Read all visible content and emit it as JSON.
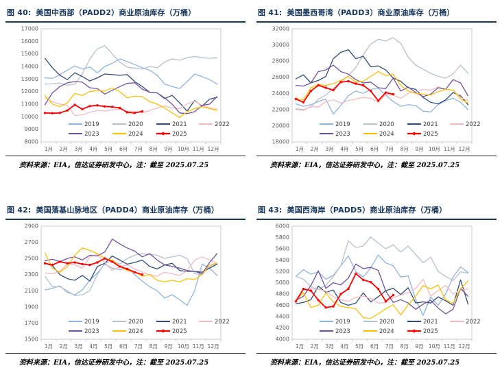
{
  "page": {
    "background": "#ffffff",
    "title_color": "#17375E",
    "axis_text_color": "#595959",
    "legend_text_color": "#404040",
    "plot_border_color": "#C9C9C9"
  },
  "source_note": "资料来源：EIA，信达证券研发中心，注：截至 2025.07.25",
  "months": [
    "1月",
    "2月",
    "3月",
    "4月",
    "5月",
    "6月",
    "7月",
    "8月",
    "9月",
    "10月",
    "11月",
    "12月"
  ],
  "palette": {
    "2019": "#8EB4E3",
    "2020": "#B6C1CE",
    "2021": "#2E4C78",
    "2022": "#F5B9BE",
    "2023": "#7450A0",
    "2024": "#FFC000",
    "2025": "#FF0000"
  },
  "legend_rows": [
    [
      "2019",
      "2020",
      "2021",
      "2022"
    ],
    [
      "2023",
      "2024",
      "2025"
    ]
  ],
  "chart_data": [
    {
      "id": "padd2",
      "type": "line",
      "fig_label": "图 40:",
      "title": "美国中西部（PADD2）商业原油库存（万桶）",
      "source": "资料来源：EIA，信达证券研发中心，注：截至 2025.07.25",
      "ylim": [
        8000,
        17000
      ],
      "ytick_step": 1000,
      "xlabel": "",
      "ylabel": "",
      "series": [
        {
          "name": "2019",
          "values": [
            13100,
            13050,
            13350,
            13700,
            14050,
            13800,
            13950,
            13500,
            14000,
            14250,
            14600,
            14400,
            14150,
            13900,
            13700,
            13300,
            12600,
            12400,
            12250,
            12800,
            13400,
            13200,
            12950,
            12600
          ]
        },
        {
          "name": "2020",
          "values": [
            12600,
            12620,
            12680,
            12520,
            12600,
            13400,
            14600,
            15400,
            15650,
            15000,
            14350,
            13950,
            13850,
            13800,
            14000,
            13900,
            14350,
            14600,
            14500,
            14700,
            14800,
            14700,
            14650,
            14700
          ]
        },
        {
          "name": "2021",
          "values": [
            14650,
            13900,
            13300,
            12950,
            13500,
            13200,
            12850,
            13100,
            13400,
            13350,
            13300,
            13350,
            12800,
            12400,
            11950,
            11900,
            11450,
            11700,
            11100,
            10450,
            11300,
            10850,
            11400,
            11550
          ]
        },
        {
          "name": "2022",
          "values": [
            11500,
            11200,
            11000,
            10900,
            10100,
            10150,
            10350,
            10500,
            10450,
            10550,
            10600,
            10450,
            10400,
            10300,
            10500,
            10700,
            10850,
            10700,
            10650,
            11000,
            11250,
            10900,
            10700,
            10600
          ]
        },
        {
          "name": "2023",
          "values": [
            10950,
            11900,
            12400,
            12700,
            12800,
            12750,
            12300,
            12250,
            11800,
            12100,
            12400,
            12650,
            12700,
            12200,
            11950,
            11900,
            11500,
            11000,
            10300,
            10250,
            10400,
            10900,
            11000,
            11600
          ]
        },
        {
          "name": "2024",
          "values": [
            11700,
            11000,
            10800,
            11100,
            11850,
            11700,
            12000,
            12100,
            12050,
            12300,
            12000,
            11500,
            11650,
            11600,
            11200,
            11000,
            10700,
            10300,
            9950,
            10400,
            10650,
            10800,
            10650,
            10500
          ]
        },
        {
          "name": "2025",
          "values": [
            10300,
            10280,
            10300,
            10500,
            10950,
            10600,
            10850,
            10900,
            10820,
            10780,
            10700,
            10350,
            10300,
            10430
          ]
        }
      ]
    },
    {
      "id": "padd3",
      "type": "line",
      "fig_label": "图 41:",
      "title": "美国墨西哥湾（PADD3）商业原油库存（万桶）",
      "source": "资料来源：EIA，信达证券研发中心，注：截至 2025.07.25",
      "ylim": [
        18000,
        32000
      ],
      "ytick_step": 2000,
      "xlabel": "",
      "ylabel": "",
      "series": [
        {
          "name": "2019",
          "values": [
            22700,
            22400,
            22600,
            23000,
            23300,
            21450,
            22500,
            23700,
            24300,
            24000,
            24500,
            24650,
            23800,
            23000,
            22400,
            22600,
            22500,
            21800,
            21700,
            22600,
            23100,
            23400,
            22900,
            22000
          ]
        },
        {
          "name": "2020",
          "values": [
            22100,
            22000,
            22300,
            23300,
            23800,
            24600,
            25400,
            26200,
            27200,
            28800,
            30100,
            30700,
            30500,
            30900,
            30200,
            28500,
            27500,
            27000,
            26500,
            26100,
            25900,
            26400,
            27500,
            26500
          ]
        },
        {
          "name": "2021",
          "values": [
            25800,
            26300,
            25300,
            25600,
            26100,
            28300,
            29100,
            29400,
            28300,
            28600,
            27300,
            27400,
            26900,
            25900,
            25500,
            24700,
            24500,
            23500,
            22900,
            22700,
            23200,
            24100,
            23700,
            22600
          ]
        },
        {
          "name": "2022",
          "values": [
            22000,
            21900,
            22400,
            22300,
            23000,
            23200,
            22800,
            23100,
            23300,
            23500,
            23400,
            22900,
            23900,
            23800,
            23400,
            24000,
            24200,
            24500,
            24400,
            24800,
            24500,
            24400,
            23500,
            23100
          ]
        },
        {
          "name": "2023",
          "values": [
            25000,
            24900,
            25300,
            26700,
            26900,
            27500,
            26700,
            26400,
            25700,
            25300,
            25400,
            24700,
            24600,
            25900,
            24300,
            24800,
            24100,
            23600,
            23900,
            24700,
            24500,
            25700,
            25300,
            23700
          ]
        },
        {
          "name": "2024",
          "values": [
            23400,
            23200,
            24700,
            25100,
            25000,
            25200,
            25600,
            26100,
            25400,
            25500,
            26100,
            26700,
            26200,
            26400,
            25000,
            24300,
            24000,
            23900,
            23800,
            24200,
            24500,
            24400,
            23300,
            22800
          ]
        },
        {
          "name": "2025",
          "values": [
            23300,
            22900,
            24300,
            25000,
            24700,
            24400,
            25400,
            25500,
            25200,
            25000,
            24300,
            23100,
            24100,
            23900
          ]
        }
      ]
    },
    {
      "id": "padd4",
      "type": "line",
      "fig_label": "图 42:",
      "title": "美国落基山脉地区（PADD4）商业原油库存（万桶）",
      "source": "资料来源：EIA，信达证券研发中心，注：截至 2025.07.25",
      "ylim": [
        1500,
        2900
      ],
      "ytick_step": 200,
      "xlabel": "",
      "ylabel": "",
      "series": [
        {
          "name": "2019",
          "values": [
            2110,
            2130,
            2160,
            2080,
            2050,
            2110,
            2230,
            2320,
            2430,
            2380,
            2360,
            2380,
            2300,
            2220,
            2150,
            2100,
            2010,
            2050,
            1990,
            1920,
            2100,
            2430,
            2380,
            2290
          ]
        },
        {
          "name": "2020",
          "values": [
            2280,
            2150,
            2150,
            2100,
            2040,
            2050,
            2100,
            2300,
            2440,
            2470,
            2430,
            2500,
            2540,
            2560,
            2550,
            2540,
            2500,
            2520,
            2540,
            2500,
            2310,
            2300,
            2400,
            2440
          ]
        },
        {
          "name": "2021",
          "values": [
            2440,
            2410,
            2300,
            2250,
            2230,
            2290,
            2220,
            2400,
            2440,
            2530,
            2480,
            2430,
            2450,
            2480,
            2400,
            2370,
            2420,
            2440,
            2350,
            2340,
            2340,
            2330,
            2380,
            2430
          ]
        },
        {
          "name": "2022",
          "values": [
            2320,
            2310,
            2340,
            2430,
            2420,
            2380,
            2520,
            2550,
            2450,
            2350,
            2400,
            2420,
            2370,
            2330,
            2300,
            2280,
            2330,
            2310,
            2290,
            2350,
            2480,
            2520,
            2480,
            2440
          ]
        },
        {
          "name": "2023",
          "values": [
            2470,
            2490,
            2460,
            2500,
            2520,
            2480,
            2540,
            2530,
            2580,
            2740,
            2680,
            2630,
            2590,
            2520,
            2560,
            2480,
            2420,
            2400,
            2380,
            2350,
            2340,
            2310,
            2450,
            2560
          ]
        },
        {
          "name": "2024",
          "values": [
            2570,
            2380,
            2330,
            2400,
            2540,
            2630,
            2600,
            2560,
            2500,
            2480,
            2400,
            2350,
            2330,
            2280,
            2300,
            2230,
            2210,
            2230,
            2210,
            2250,
            2240,
            2300,
            2420,
            2440
          ]
        },
        {
          "name": "2025",
          "values": [
            2440,
            2420,
            2460,
            2440,
            2450,
            2430,
            2420,
            2450,
            2500,
            2460,
            2400,
            2370,
            2330,
            2300
          ]
        }
      ]
    },
    {
      "id": "padd5",
      "type": "line",
      "fig_label": "图 43:",
      "title": "美国西海岸（PADD5）商业原油库存（万桶）",
      "source": "资料来源：EIA，信达证券研发中心，注：截至 2025.07.25",
      "ylim": [
        4000,
        6000
      ],
      "ytick_step": 200,
      "xlabel": "",
      "ylabel": "",
      "series": [
        {
          "name": "2019",
          "values": [
            5110,
            5230,
            5150,
            5190,
            5060,
            5130,
            5300,
            5470,
            5200,
            5100,
            5260,
            5490,
            5350,
            5300,
            5100,
            5120,
            4700,
            4420,
            4750,
            4600,
            4800,
            5100,
            5280,
            5180
          ]
        },
        {
          "name": "2020",
          "values": [
            5110,
            5060,
            4930,
            4880,
            4950,
            5110,
            5300,
            5740,
            5620,
            5650,
            5810,
            5700,
            5600,
            5670,
            5540,
            5650,
            5500,
            5350,
            5450,
            5200,
            5110,
            5040,
            5190,
            5170
          ]
        },
        {
          "name": "2021",
          "values": [
            4630,
            4650,
            4700,
            4940,
            4830,
            4870,
            4650,
            4600,
            4640,
            4820,
            4660,
            4750,
            4860,
            4900,
            4790,
            4910,
            4640,
            4660,
            4640,
            4750,
            4680,
            4600,
            5050,
            4620
          ]
        },
        {
          "name": "2022",
          "values": [
            4690,
            4880,
            4900,
            4880,
            4850,
            4750,
            4700,
            4670,
            4740,
            4760,
            4720,
            4640,
            4650,
            4740,
            4780,
            4830,
            4900,
            5060,
            4760,
            4860,
            4950,
            4800,
            4870,
            4890
          ]
        },
        {
          "name": "2023",
          "values": [
            4690,
            4760,
            4950,
            5210,
            4900,
            5000,
            4960,
            5080,
            5330,
            5250,
            5270,
            5220,
            4850,
            4650,
            4700,
            4640,
            4530,
            4620,
            4690,
            4550,
            4450,
            4530,
            4900,
            4760
          ]
        },
        {
          "name": "2024",
          "values": [
            4700,
            4820,
            4560,
            4600,
            4820,
            4660,
            4580,
            4560,
            4540,
            4380,
            4370,
            4450,
            4540,
            4610,
            4430,
            4610,
            4760,
            4950,
            4890,
            4960,
            4700,
            4630,
            4900,
            5030
          ]
        },
        {
          "name": "2025",
          "values": [
            4670,
            4890,
            4860,
            4690,
            4560,
            4580,
            4800,
            4890,
            5160,
            5050,
            5010,
            4890,
            4670,
            4780
          ]
        }
      ]
    }
  ]
}
